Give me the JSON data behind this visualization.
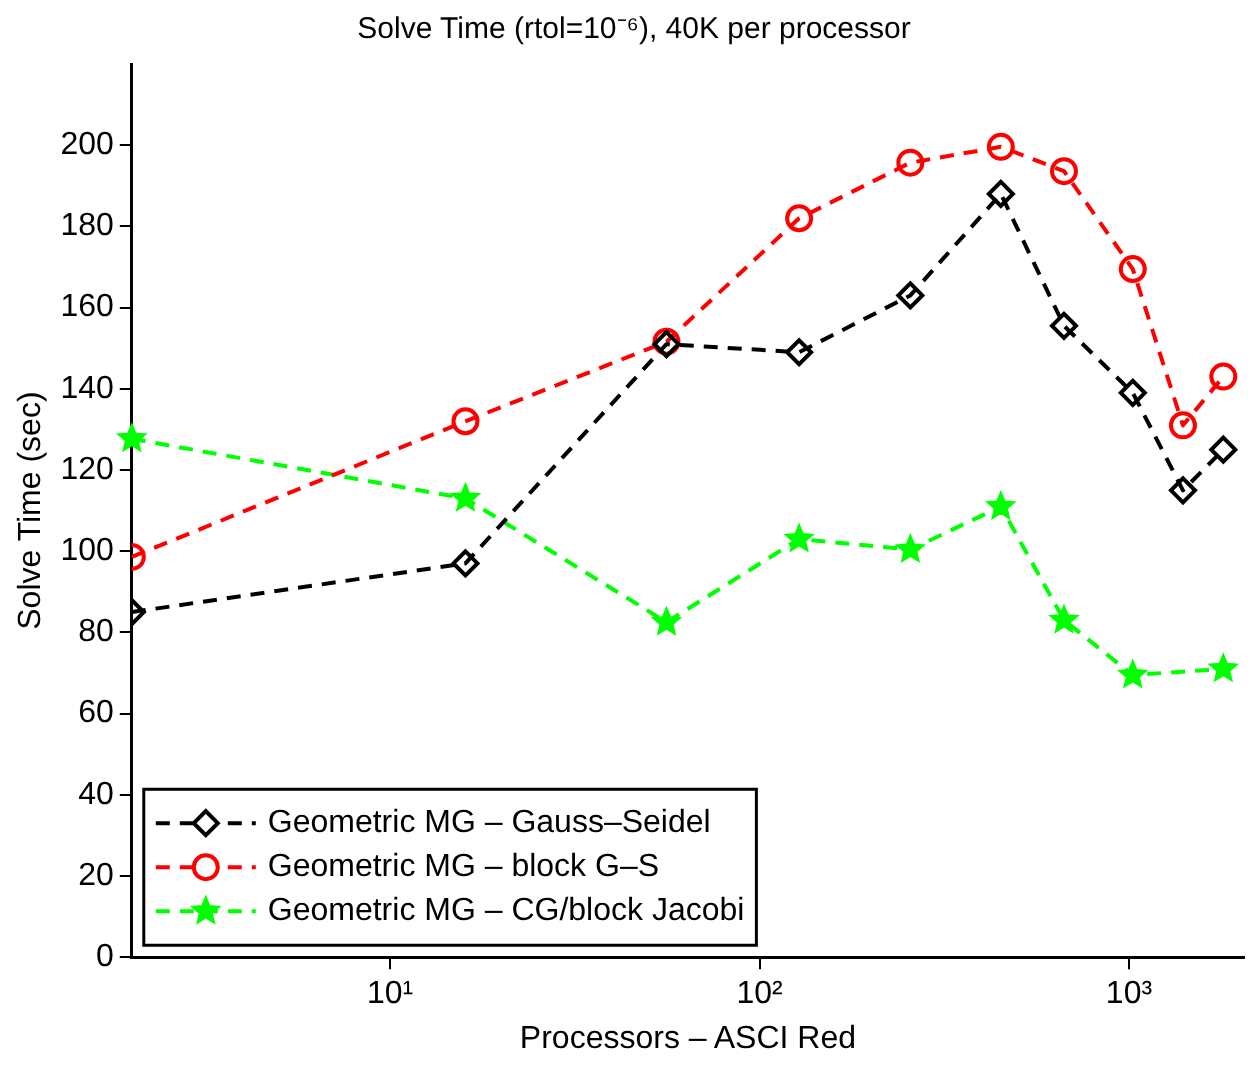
{
  "chart_data": {
    "type": "line",
    "title": "Solve Time (rtol=10⁻⁶), 40K per processor",
    "xlabel": "Processors – ASCI Red",
    "ylabel": "Solve Time (sec)",
    "x": [
      2,
      16,
      56,
      128,
      256,
      450,
      667,
      1024,
      1400,
      1800
    ],
    "series": [
      {
        "name": "Geometric MG – Gauss–Seidel",
        "color": "#000000",
        "marker": "diamond",
        "values": [
          85,
          97,
          151,
          149,
          163,
          188,
          155.5,
          139,
          115,
          125
        ]
      },
      {
        "name": "Geometric MG – block G–S",
        "color": "#ff0000",
        "marker": "circle",
        "values": [
          98.6,
          132,
          151.6,
          182,
          195.7,
          199.6,
          193.6,
          169.5,
          131,
          143
        ]
      },
      {
        "name": "Geometric MG – CG/block Jacobi",
        "color": "#00ff00",
        "marker": "star",
        "values": [
          127.7,
          113,
          82.5,
          103,
          100.4,
          111,
          83,
          69.5,
          null,
          71
        ]
      }
    ],
    "log": "x",
    "xlim": [
      2,
      2048
    ],
    "xticks": [
      {
        "value": 10,
        "label": "10¹"
      },
      {
        "value": 100,
        "label": "10²"
      },
      {
        "value": 1000,
        "label": "10³"
      }
    ],
    "ylim": [
      0,
      220
    ],
    "yticks": [
      0,
      20,
      40,
      60,
      80,
      100,
      120,
      140,
      160,
      180,
      200
    ],
    "line_style": "dashed",
    "grid": false,
    "legend": "bottom left"
  }
}
